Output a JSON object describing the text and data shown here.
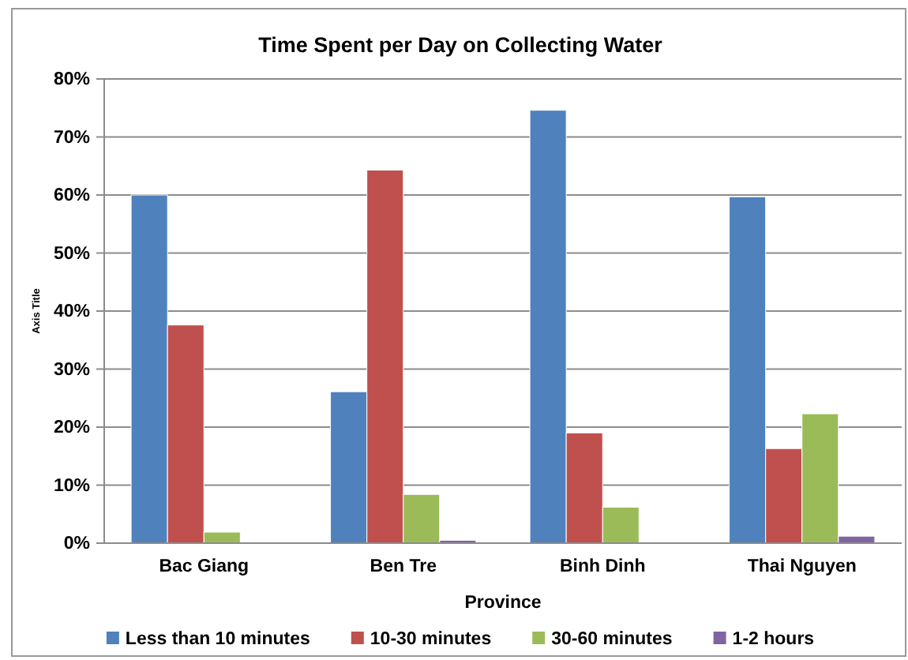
{
  "chart_data": {
    "type": "bar",
    "title": "Time Spent per Day on Collecting Water",
    "xlabel": "Province",
    "ylabel": "Axis Title",
    "categories": [
      "Bac Giang",
      "Ben Tre",
      "Binh Dinh",
      "Thai Nguyen"
    ],
    "series": [
      {
        "name": "Less than 10 minutes",
        "color": "#4f81bd",
        "values": [
          60,
          26.1,
          74.6,
          59.7
        ]
      },
      {
        "name": "10-30 minutes",
        "color": "#c0504d",
        "values": [
          37.6,
          64.3,
          19,
          16.3
        ]
      },
      {
        "name": "30-60 minutes",
        "color": "#9bbb59",
        "values": [
          1.9,
          8.4,
          6.2,
          22.3
        ]
      },
      {
        "name": "1-2 hours",
        "color": "#8064a2",
        "values": [
          null,
          0.5,
          null,
          1.2
        ]
      }
    ],
    "ylim": [
      0,
      80
    ],
    "yticks": [
      {
        "value": 0,
        "label": "0%"
      },
      {
        "value": 10,
        "label": "10%"
      },
      {
        "value": 20,
        "label": "20%"
      },
      {
        "value": 30,
        "label": "30%"
      },
      {
        "value": 40,
        "label": "40%"
      },
      {
        "value": 50,
        "label": "50%"
      },
      {
        "value": 60,
        "label": "60%"
      },
      {
        "value": 70,
        "label": "70%"
      },
      {
        "value": 80,
        "label": "80%"
      }
    ],
    "grid": "y",
    "legend": "bottom"
  }
}
